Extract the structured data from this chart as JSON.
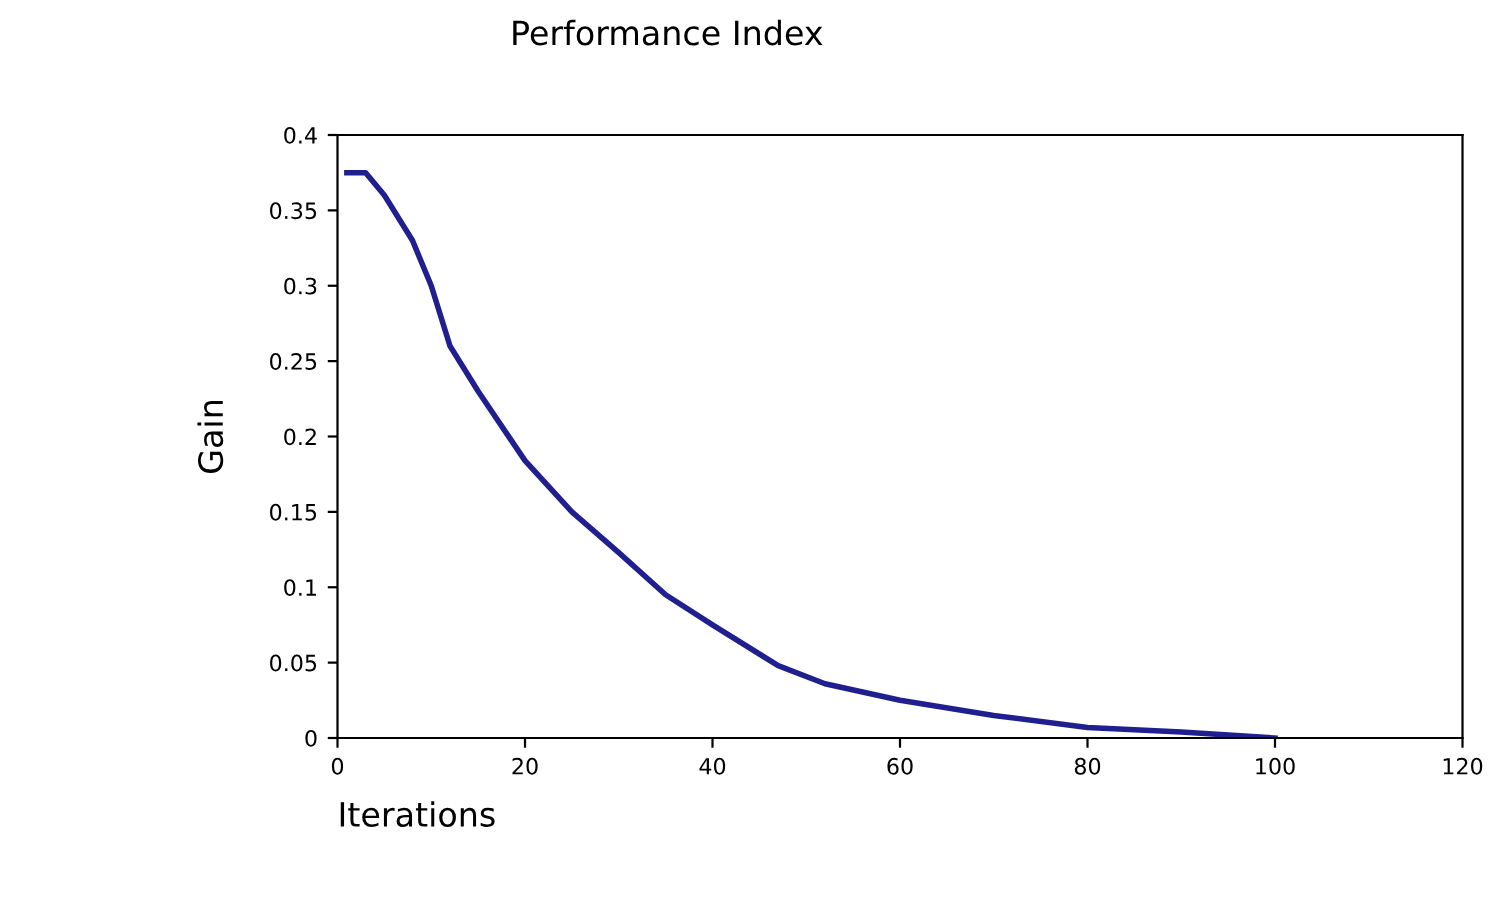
{
  "chart_data": {
    "type": "line",
    "title": "Performance Index",
    "xlabel": "Iterations",
    "ylabel": "Gain",
    "x": [
      1,
      3,
      5,
      8,
      10,
      12,
      15,
      20,
      25,
      30,
      35,
      40,
      47,
      52,
      60,
      70,
      80,
      90,
      100
    ],
    "series": [
      {
        "color": "#1f1f8f",
        "values": [
          0.375,
          0.375,
          0.36,
          0.33,
          0.3,
          0.26,
          0.23,
          0.184,
          0.15,
          0.123,
          0.095,
          0.075,
          0.048,
          0.036,
          0.025,
          0.015,
          0.007,
          0.004,
          0.0
        ]
      }
    ],
    "xlim": [
      0,
      120
    ],
    "xticks": [
      0,
      20,
      40,
      60,
      80,
      100,
      120
    ],
    "ylim": [
      0,
      0.4
    ],
    "yticks": [
      0,
      0.05,
      0.1,
      0.15,
      0.2,
      0.25,
      0.3,
      0.35,
      0.4
    ],
    "grid": false,
    "legend": false,
    "marker": "none",
    "line_style": "solid"
  }
}
